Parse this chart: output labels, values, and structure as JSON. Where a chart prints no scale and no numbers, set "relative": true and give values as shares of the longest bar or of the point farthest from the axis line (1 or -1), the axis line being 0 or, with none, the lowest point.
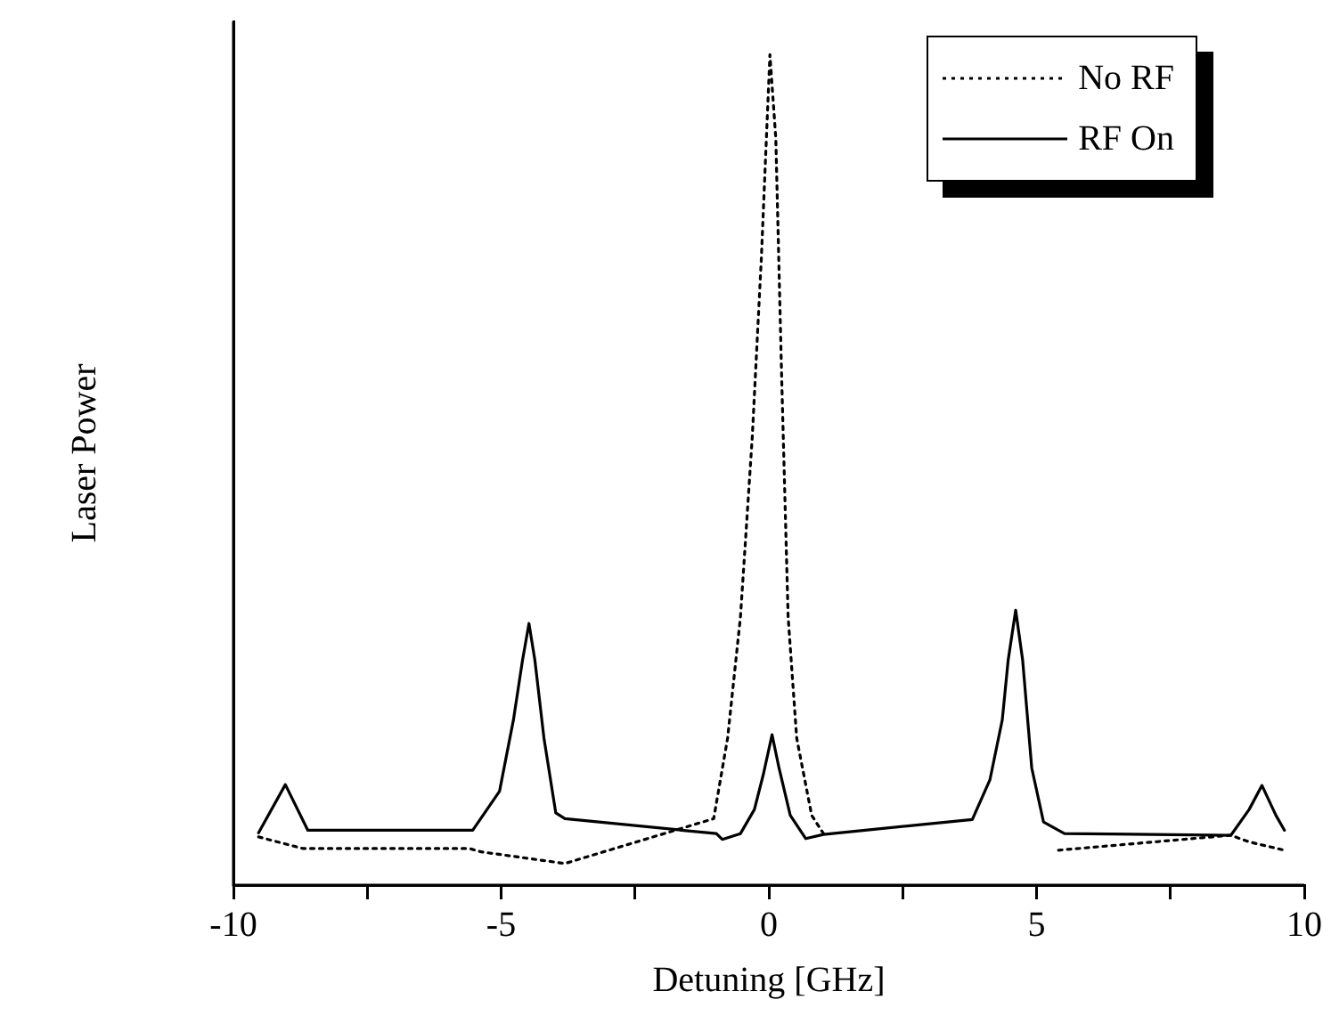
{
  "chart_data": {
    "type": "line",
    "xlabel": "Detuning [GHz]",
    "ylabel": "Laser Power",
    "relative": true,
    "xlim": [
      -10,
      10
    ],
    "xticks": [
      -10,
      {
        "value": -7.5,
        "label": null
      },
      -5,
      {
        "value": -2.5,
        "label": null
      },
      0,
      {
        "value": 2.5,
        "label": null
      },
      5,
      {
        "value": 7.5,
        "label": null
      },
      10
    ],
    "grid": false,
    "legend": "top right",
    "marker": "none",
    "series": [
      {
        "name": "No RF",
        "color": "#000000",
        "line_style": "dotted",
        "x": [
          -9.53,
          -8.7,
          -5.59,
          -5.37,
          -3.81,
          -1.03,
          -0.77,
          -0.53,
          -0.31,
          -0.14,
          0.02,
          0.13,
          0.24,
          0.36,
          0.52,
          0.8,
          1.02,
          3,
          5.41,
          8.63,
          8.97,
          9.63
        ],
        "values": [
          0.058,
          0.044,
          0.044,
          0.04,
          0.026,
          0.08,
          0.177,
          0.323,
          0.539,
          0.755,
          1,
          0.899,
          0.61,
          0.323,
          0.177,
          0.084,
          0.062,
          null,
          0.042,
          0.06,
          0.052,
          0.042
        ]
      },
      {
        "name": "RF On",
        "color": "#000000",
        "line_style": "solid",
        "x": [
          -9.53,
          -9.03,
          -8.61,
          -5.53,
          -5.03,
          -4.77,
          -4.6,
          -4.48,
          -4.37,
          -4.2,
          -3.98,
          -3.81,
          -0.98,
          -0.87,
          -0.53,
          -0.27,
          -0.1,
          0.06,
          0.19,
          0.4,
          0.69,
          1.02,
          3.8,
          4.13,
          4.36,
          4.47,
          4.61,
          4.74,
          4.91,
          5.13,
          5.52,
          8.63,
          8.97,
          9.21,
          9.47,
          9.63
        ],
        "values": [
          0.063,
          0.121,
          0.066,
          0.066,
          0.113,
          0.199,
          0.271,
          0.315,
          0.271,
          0.177,
          0.087,
          0.08,
          0.062,
          0.055,
          0.062,
          0.091,
          0.134,
          0.181,
          0.141,
          0.084,
          0.056,
          0.061,
          0.079,
          0.127,
          0.199,
          0.271,
          0.331,
          0.271,
          0.141,
          0.076,
          0.062,
          0.06,
          0.091,
          0.12,
          0.084,
          0.066
        ]
      }
    ]
  }
}
